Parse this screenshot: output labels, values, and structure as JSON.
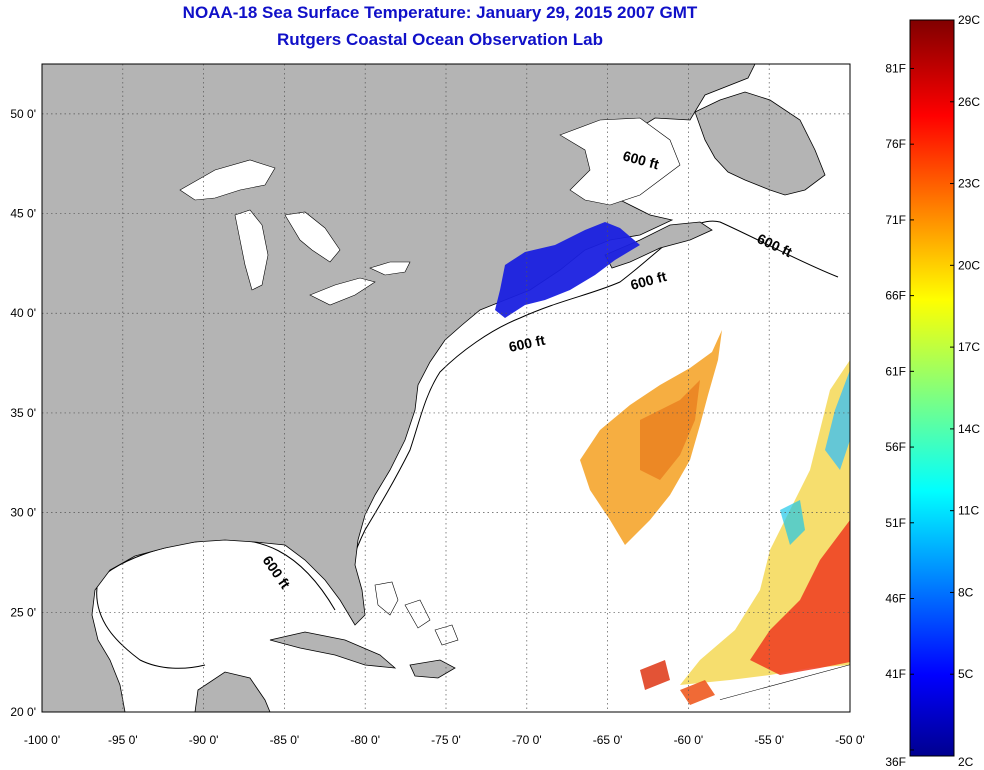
{
  "title": {
    "line1": "NOAA-18 Sea Surface Temperature:  January 29, 2015 2007 GMT",
    "line2": "Rutgers Coastal Ocean Observation Lab"
  },
  "map": {
    "lon_range": [
      -100,
      -50
    ],
    "lat_range": [
      20,
      52.5
    ],
    "lon_ticks": [
      "-100 0'",
      "-95 0'",
      "-90 0'",
      "-85 0'",
      "-80 0'",
      "-75 0'",
      "-70 0'",
      "-65 0'",
      "-60 0'",
      "-55 0'",
      "-50 0'"
    ],
    "lat_ticks": [
      "20 0'",
      "25 0'",
      "30 0'",
      "35 0'",
      "40 0'",
      "45 0'",
      "50 0'"
    ],
    "grid": true,
    "contour_label": "600 ft",
    "land_color": "#b4b4b4",
    "ocean_color": "#ffffff"
  },
  "colorbar": {
    "celsius_labels": [
      "29C",
      "26C",
      "23C",
      "20C",
      "17C",
      "14C",
      "11C",
      "8C",
      "5C",
      "2C"
    ],
    "fahrenheit_labels": [
      "81F",
      "76F",
      "71F",
      "66F",
      "61F",
      "56F",
      "51F",
      "46F",
      "41F",
      "36F"
    ],
    "colormap": "jet"
  }
}
